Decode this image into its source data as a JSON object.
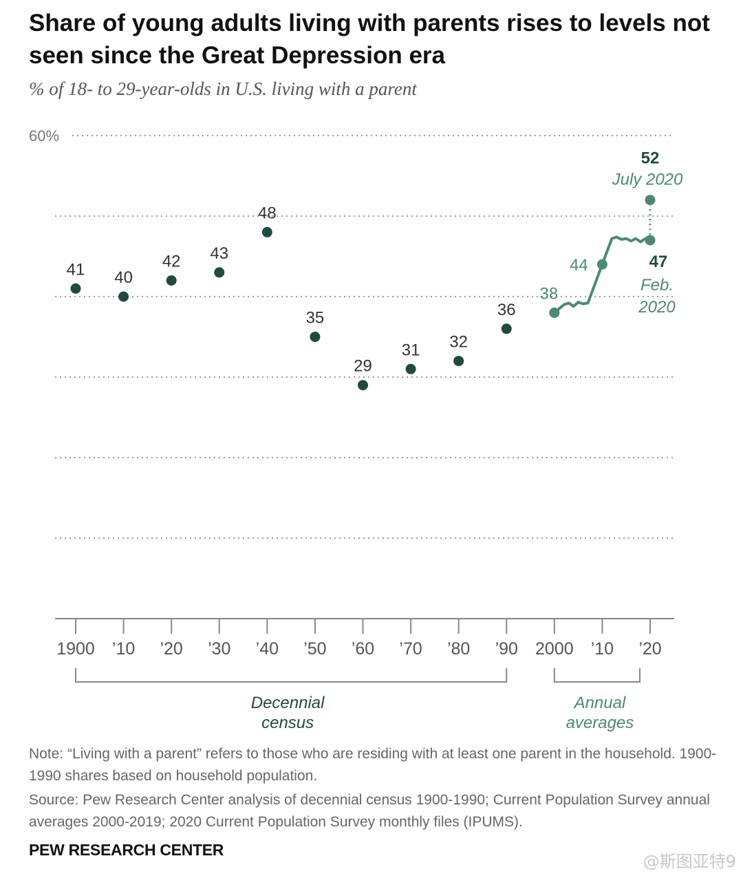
{
  "title": "Share of young adults living with parents rises to levels not seen since the Great Depression era",
  "subtitle": "% of 18- to 29-year-olds in U.S. living with a parent",
  "note": "Note: “Living with a parent” refers to those who are residing with at least one parent in the household. 1900-1990 shares based on household population.",
  "source": "Source: Pew Research Center analysis of decennial census 1900-1990; Current Population Survey annual averages 2000-2019; 2020 Current Population Survey monthly files (IPUMS).",
  "brand": "PEW RESEARCH CENTER",
  "watermark": "@斯图亚特9",
  "chart_data": {
    "type": "scatter",
    "title": "Share of young adults living with parents rises to levels not seen since the Great Depression era",
    "subtitle": "% of 18- to 29-year-olds in U.S. living with a parent",
    "ylim": [
      0,
      60
    ],
    "y_gridlines": [
      10,
      20,
      30,
      40,
      50,
      60
    ],
    "y_tick_labels": [
      {
        "value": 60,
        "label": "60%"
      }
    ],
    "xlim": [
      1900,
      2020
    ],
    "x_ticks": [
      {
        "value": 1900,
        "label": "1900"
      },
      {
        "value": 1910,
        "label": "'10"
      },
      {
        "value": 1920,
        "label": "'20"
      },
      {
        "value": 1930,
        "label": "'30"
      },
      {
        "value": 1940,
        "label": "'40"
      },
      {
        "value": 1950,
        "label": "'50"
      },
      {
        "value": 1960,
        "label": "'60"
      },
      {
        "value": 1970,
        "label": "'70"
      },
      {
        "value": 1980,
        "label": "'80"
      },
      {
        "value": 1990,
        "label": "'90"
      },
      {
        "value": 2000,
        "label": "2000"
      },
      {
        "value": 2010,
        "label": "'10"
      },
      {
        "value": 2020,
        "label": "'20"
      }
    ],
    "grid": true,
    "colors": {
      "census": "#1f4a3f",
      "cps": "#4a8a74",
      "grid": "#9a9a9a",
      "axis": "#888888",
      "text": "#333333"
    },
    "census": {
      "x": [
        1900,
        1910,
        1920,
        1930,
        1940,
        1950,
        1960,
        1970,
        1980,
        1990
      ],
      "y": [
        41,
        40,
        42,
        43,
        48,
        35,
        29,
        31,
        32,
        36
      ],
      "labels": [
        "41",
        "40",
        "42",
        "43",
        "48",
        "35",
        "29",
        "31",
        "32",
        "36"
      ]
    },
    "annual": {
      "x": [
        2000,
        2001,
        2002,
        2003,
        2004,
        2005,
        2006,
        2007,
        2008,
        2009,
        2010,
        2011,
        2012,
        2013,
        2014,
        2015,
        2016,
        2017,
        2018,
        2019,
        2020
      ],
      "y": [
        38,
        38.5,
        39,
        39.2,
        38.8,
        39.3,
        39.1,
        39.2,
        40.8,
        42.4,
        44.0,
        45.6,
        47.2,
        47.4,
        47.1,
        47.2,
        46.9,
        47.2,
        46.8,
        47.2,
        47
      ]
    },
    "highlights": [
      {
        "x": 2000,
        "y": 38,
        "label": "38"
      },
      {
        "x": 2010,
        "y": 44,
        "label": "44"
      },
      {
        "x": 2020,
        "y": 47,
        "label": "47",
        "sublabel": [
          "Feb.",
          "2020"
        ]
      },
      {
        "x": 2020,
        "y": 52,
        "label": "52",
        "sublabel": [
          "July 2020"
        ]
      }
    ],
    "groups": [
      {
        "label": [
          "Decennial",
          "census"
        ],
        "from": 1900,
        "to": 1990
      },
      {
        "label": [
          "Annual",
          "averages"
        ],
        "from": 2000,
        "to": 2019
      }
    ]
  }
}
